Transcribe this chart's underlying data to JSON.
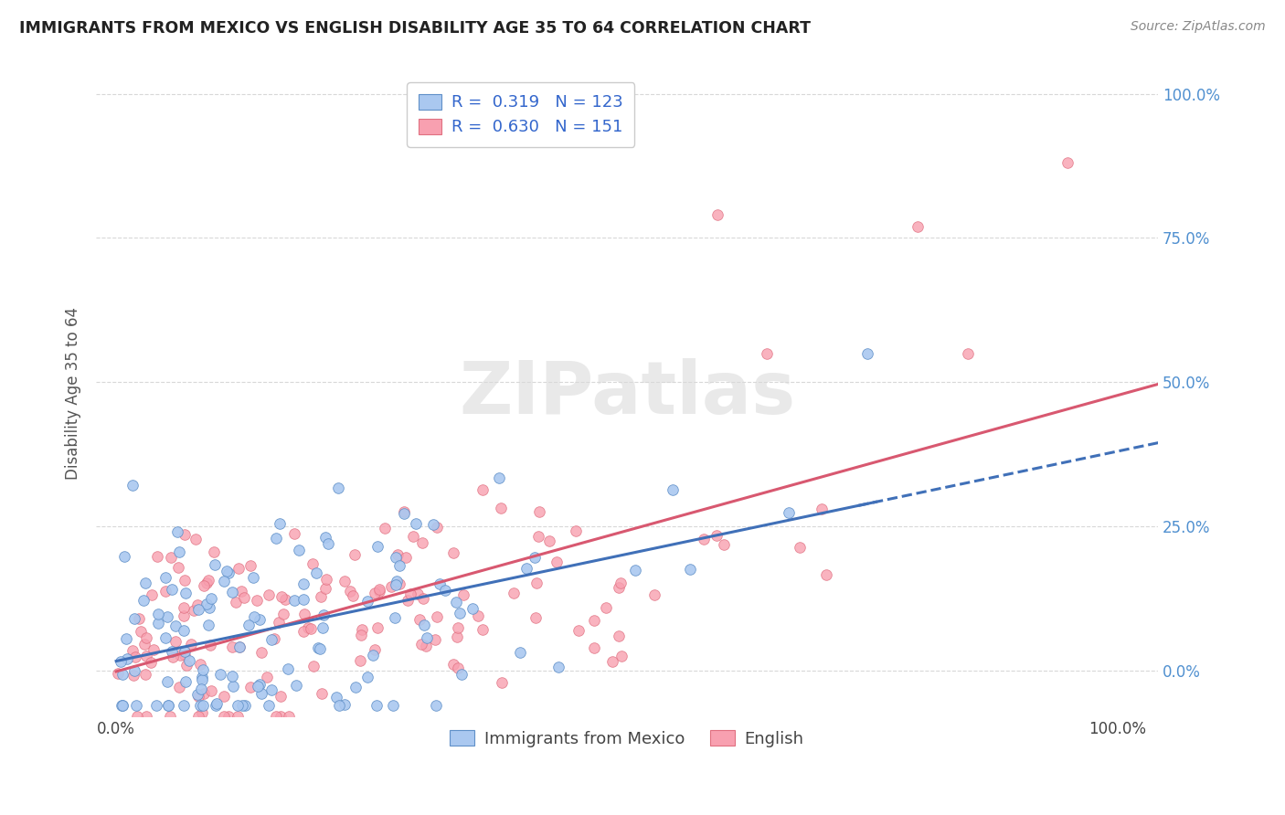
{
  "title": "IMMIGRANTS FROM MEXICO VS ENGLISH DISABILITY AGE 35 TO 64 CORRELATION CHART",
  "source": "Source: ZipAtlas.com",
  "ylabel": "Disability Age 35 to 64",
  "bottom_legend": [
    "Immigrants from Mexico",
    "English"
  ],
  "blue_scatter_face": "#aac8f0",
  "blue_scatter_edge": "#6090c8",
  "pink_scatter_face": "#f8a0b0",
  "pink_scatter_edge": "#e07080",
  "blue_line_color": "#4070b8",
  "pink_line_color": "#d85870",
  "tick_color_blue": "#5090d0",
  "watermark_text": "ZIPatlas",
  "watermark_color": "#d8d8d8",
  "title_color": "#222222",
  "source_color": "#888888",
  "ylabel_color": "#555555",
  "grid_color": "#d8d8d8",
  "blue_R": 0.319,
  "blue_N": 123,
  "pink_R": 0.63,
  "pink_N": 151,
  "seed_blue": 7,
  "seed_pink": 13,
  "xlim": [
    0.0,
    1.0
  ],
  "ylim": [
    0.0,
    1.0
  ],
  "yticks": [
    0.0,
    0.25,
    0.5,
    0.75,
    1.0
  ],
  "ytick_labels": [
    "0.0%",
    "25.0%",
    "50.0%",
    "75.0%",
    "100.0%"
  ],
  "xticks": [
    0.0,
    1.0
  ],
  "xtick_labels": [
    "0.0%",
    "100.0%"
  ],
  "legend_labels": [
    "R =  0.319   N = 123",
    "R =  0.630   N = 151"
  ],
  "legend_text_color": "#3366cc"
}
